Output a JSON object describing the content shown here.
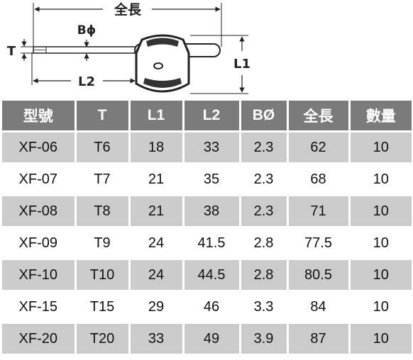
{
  "diagram": {
    "labels": {
      "overall_length": "全長",
      "shaft_diameter": "Bϕ",
      "tip": "T",
      "handle_length": "L1",
      "shaft_length": "L2"
    }
  },
  "table": {
    "headers": [
      "型號",
      "T",
      "L1",
      "L2",
      "BØ",
      "全長",
      "數量"
    ],
    "rows": [
      [
        "XF-06",
        "T6",
        "18",
        "33",
        "2.3",
        "62",
        "10"
      ],
      [
        "XF-07",
        "T7",
        "21",
        "35",
        "2.3",
        "68",
        "10"
      ],
      [
        "XF-08",
        "T8",
        "21",
        "38",
        "2.3",
        "71",
        "10"
      ],
      [
        "XF-09",
        "T9",
        "24",
        "41.5",
        "2.8",
        "77.5",
        "10"
      ],
      [
        "XF-10",
        "T10",
        "24",
        "44.5",
        "2.8",
        "80.5",
        "10"
      ],
      [
        "XF-15",
        "T15",
        "29",
        "46",
        "3.3",
        "84",
        "10"
      ],
      [
        "XF-20",
        "T20",
        "33",
        "49",
        "3.9",
        "87",
        "10"
      ]
    ]
  }
}
